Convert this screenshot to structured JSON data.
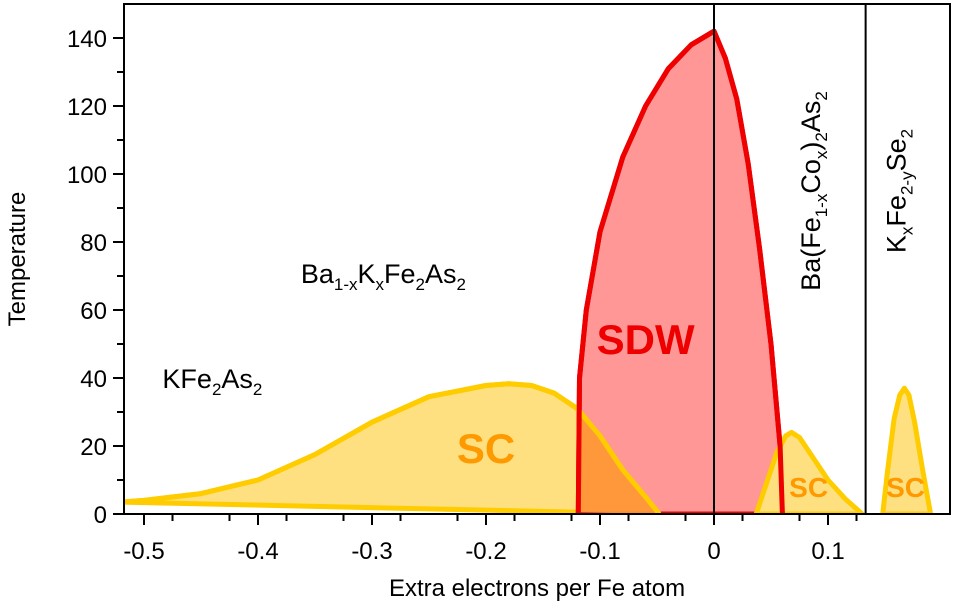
{
  "chart_data": {
    "type": "area",
    "xlabel": "Extra electrons per Fe atom",
    "ylabel": "Temperature",
    "xlim": [
      -0.52,
      0.14
    ],
    "ylim": [
      0,
      148
    ],
    "xticks": [
      -0.5,
      -0.4,
      -0.3,
      -0.2,
      -0.1,
      0,
      0.1
    ],
    "xtick_labels": [
      "-0.5",
      "-0.4",
      "-0.3",
      "-0.2",
      "-0.1",
      "0",
      "0.1"
    ],
    "yticks": [
      0,
      20,
      40,
      60,
      80,
      100,
      120,
      140
    ],
    "ytick_labels": [
      "0",
      "20",
      "40",
      "60",
      "80",
      "100",
      "120",
      "140"
    ],
    "grid": false,
    "dividers_x": [
      0,
      0.133
    ],
    "series": [
      {
        "name": "SDW",
        "label": "SDW",
        "fill": "#ff8080",
        "stroke": "#ee0000",
        "label_color": "#ee0000",
        "label_pos": [
          -0.06,
          47
        ],
        "points": [
          [
            -0.119,
            0
          ],
          [
            -0.118,
            40
          ],
          [
            -0.112,
            60
          ],
          [
            -0.1,
            83
          ],
          [
            -0.08,
            105
          ],
          [
            -0.06,
            120
          ],
          [
            -0.04,
            131
          ],
          [
            -0.02,
            138
          ],
          [
            0,
            142
          ],
          [
            0.01,
            134
          ],
          [
            0.02,
            122
          ],
          [
            0.03,
            103
          ],
          [
            0.04,
            78
          ],
          [
            0.05,
            50
          ],
          [
            0.058,
            20
          ],
          [
            0.06,
            0
          ]
        ]
      },
      {
        "name": "SC",
        "label": "SC",
        "fill": "#ffe080",
        "stroke": "#ffcc00",
        "label_color": "#ff9900",
        "label_pos": [
          -0.2,
          15
        ],
        "points": [
          [
            -0.52,
            3.5
          ],
          [
            -0.5,
            4
          ],
          [
            -0.45,
            6
          ],
          [
            -0.4,
            10
          ],
          [
            -0.35,
            17.5
          ],
          [
            -0.3,
            27
          ],
          [
            -0.25,
            34.5
          ],
          [
            -0.2,
            37.8
          ],
          [
            -0.18,
            38.3
          ],
          [
            -0.16,
            37.8
          ],
          [
            -0.14,
            35.5
          ],
          [
            -0.12,
            31
          ],
          [
            -0.1,
            23
          ],
          [
            -0.08,
            13
          ],
          [
            -0.06,
            5
          ],
          [
            -0.048,
            0
          ]
        ]
      },
      {
        "name": "SC",
        "label": "SC",
        "fill": "#ffe080",
        "stroke": "#ffcc00",
        "label_color": "#ff9900",
        "label_pos": [
          0.083,
          5
        ],
        "points": [
          [
            0.037,
            0
          ],
          [
            0.045,
            8
          ],
          [
            0.055,
            18
          ],
          [
            0.063,
            23
          ],
          [
            0.068,
            24
          ],
          [
            0.075,
            22.5
          ],
          [
            0.085,
            17.5
          ],
          [
            0.1,
            10
          ],
          [
            0.115,
            4.5
          ],
          [
            0.13,
            0
          ]
        ]
      },
      {
        "name": "SC",
        "label": "SC",
        "fill": "#ffe080",
        "stroke": "#ffcc00",
        "label_color": "#ff9900",
        "label_pos": [
          0.168,
          5
        ],
        "points": [
          [
            0.148,
            0
          ],
          [
            0.152,
            12
          ],
          [
            0.158,
            28
          ],
          [
            0.163,
            35
          ],
          [
            0.167,
            37
          ],
          [
            0.171,
            35
          ],
          [
            0.176,
            27
          ],
          [
            0.183,
            13
          ],
          [
            0.19,
            0
          ]
        ]
      }
    ],
    "annotations": [
      {
        "name": "kfe2as2",
        "parts": [
          [
            "KFe",
            ""
          ],
          [
            "2",
            "sub"
          ],
          [
            "As",
            ""
          ],
          [
            "2",
            "sub"
          ]
        ],
        "pos": [
          -0.44,
          37
        ],
        "rotate": 0,
        "size": 27
      },
      {
        "name": "ba-k",
        "parts": [
          [
            "Ba",
            ""
          ],
          [
            "1-x",
            "sub"
          ],
          [
            "K",
            ""
          ],
          [
            "x",
            "sub"
          ],
          [
            "Fe",
            ""
          ],
          [
            "2",
            "sub"
          ],
          [
            "As",
            ""
          ],
          [
            "2",
            "sub"
          ]
        ],
        "pos": [
          -0.29,
          68
        ],
        "rotate": 0,
        "size": 27
      },
      {
        "name": "ba-co",
        "parts": [
          [
            "Ba(Fe",
            ""
          ],
          [
            "1-x",
            "sub"
          ],
          [
            "Co",
            ""
          ],
          [
            "x",
            "sub"
          ],
          [
            ")",
            ""
          ],
          [
            "2",
            "sub"
          ],
          [
            "As",
            ""
          ],
          [
            "2",
            "sub"
          ]
        ],
        "pos": [
          0.093,
          95
        ],
        "rotate": -90,
        "size": 27
      },
      {
        "name": "kfese",
        "parts": [
          [
            "K",
            ""
          ],
          [
            "x",
            "sub"
          ],
          [
            "Fe",
            ""
          ],
          [
            "2-y",
            "sub"
          ],
          [
            "Se",
            ""
          ],
          [
            "2",
            "sub"
          ]
        ],
        "pos": [
          0.168,
          95
        ],
        "rotate": -90,
        "size": 27
      }
    ]
  }
}
